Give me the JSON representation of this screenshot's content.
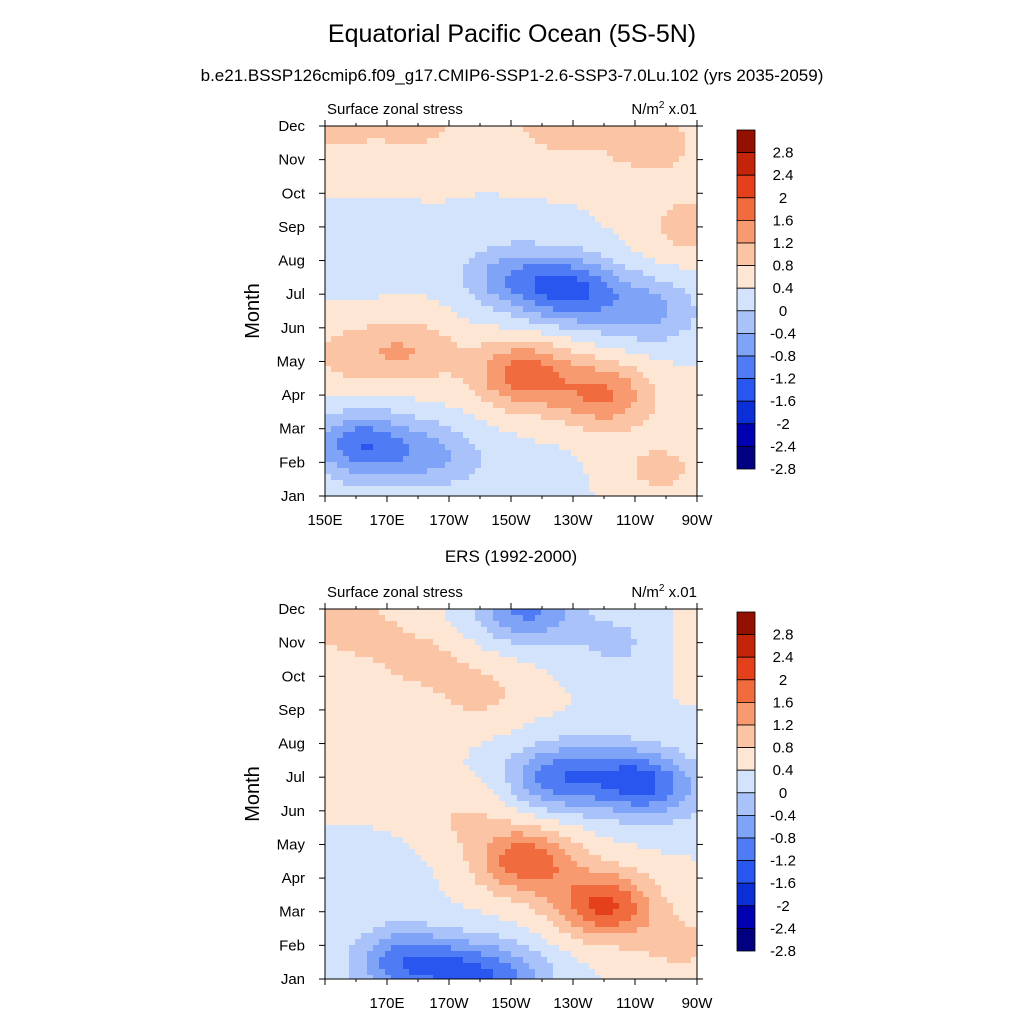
{
  "main_title": "Equatorial Pacific Ocean (5S-5N)",
  "sub_title": "b.e21.BSSP126cmip6.f09_g17.CMIP6-SSP1-2.6-SSP3-7.0Lu.102 (yrs 2035-2059)",
  "palette": [
    "#000080",
    "#0000b0",
    "#0a2fd6",
    "#2a56f0",
    "#4f7cf5",
    "#7ea3f7",
    "#a9c3fa",
    "#d3e3fb",
    "#fde6d4",
    "#fbc4a4",
    "#f79a70",
    "#f06b3e",
    "#e3401b",
    "#c42409",
    "#931000"
  ],
  "chart_data": [
    {
      "type": "heatmap",
      "title": "",
      "subtitle_left": "Surface zonal stress",
      "units_base": "N/m",
      "units_sup": "2",
      "units_suffix": " x.01",
      "ylabel": "Month",
      "xlabel": "",
      "x_ticks": [
        "150E",
        "170E",
        "170W",
        "150W",
        "130W",
        "110W",
        "90W"
      ],
      "y_ticks": [
        "Jan",
        "Feb",
        "Mar",
        "Apr",
        "May",
        "Jun",
        "Jul",
        "Aug",
        "Sep",
        "Oct",
        "Nov",
        "Dec"
      ],
      "contour_levels": [
        "2.8",
        "2.4",
        "2",
        "1.6",
        "1.2",
        "0.8",
        "0.4",
        "0",
        "-0.4",
        "-0.8",
        "-1.2",
        "-1.6",
        "-2",
        "-2.4",
        "-2.8"
      ],
      "x_lon_range": [
        150,
        270
      ],
      "y_month_range": [
        1,
        12
      ],
      "features": [
        {
          "lon": 153,
          "month": 12,
          "value": 0.5
        },
        {
          "lon": 180,
          "month": 12.2,
          "value": 0.6
        },
        {
          "lon": 225,
          "month": 12,
          "value": 0.6
        },
        {
          "lon": 255,
          "month": 11.5,
          "value": 0.7
        },
        {
          "lon": 268,
          "month": 9,
          "value": 0.6
        },
        {
          "lon": 160,
          "month": 8,
          "value": -0.2
        },
        {
          "lon": 230,
          "month": 7.1,
          "value": -1.6
        },
        {
          "lon": 210,
          "month": 7.5,
          "value": -1.0
        },
        {
          "lon": 255,
          "month": 6.5,
          "value": -0.9
        },
        {
          "lon": 214,
          "month": 4.6,
          "value": 1.4
        },
        {
          "lon": 240,
          "month": 4,
          "value": 1.2
        },
        {
          "lon": 178,
          "month": 5.3,
          "value": 0.7
        },
        {
          "lon": 158,
          "month": 5.2,
          "value": 0.5
        },
        {
          "lon": 162,
          "month": 2.5,
          "value": -1.5
        },
        {
          "lon": 185,
          "month": 2.2,
          "value": -0.8
        },
        {
          "lon": 215,
          "month": 1.3,
          "value": -0.3
        },
        {
          "lon": 258,
          "month": 1.8,
          "value": 0.5
        }
      ]
    },
    {
      "type": "heatmap",
      "title": "ERS (1992-2000)",
      "subtitle_left": "Surface zonal stress",
      "units_base": "N/m",
      "units_sup": "2",
      "units_suffix": " x.01",
      "ylabel": "Month",
      "xlabel": "",
      "x_ticks": [
        "",
        "170E",
        "170W",
        "150W",
        "130W",
        "110W",
        "90W"
      ],
      "y_ticks": [
        "Jan",
        "Feb",
        "Mar",
        "Apr",
        "May",
        "Jun",
        "Jul",
        "Aug",
        "Sep",
        "Oct",
        "Nov",
        "Dec"
      ],
      "contour_levels": [
        "2.8",
        "2.4",
        "2",
        "1.6",
        "1.2",
        "0.8",
        "0.4",
        "0",
        "-0.4",
        "-0.8",
        "-1.2",
        "-1.6",
        "-2",
        "-2.4",
        "-2.8"
      ],
      "x_lon_range": [
        150,
        270
      ],
      "y_month_range": [
        1,
        12
      ],
      "features": [
        {
          "lon": 215,
          "month": 12,
          "value": -1.3
        },
        {
          "lon": 245,
          "month": 11,
          "value": -0.5
        },
        {
          "lon": 180,
          "month": 10.5,
          "value": 0.5
        },
        {
          "lon": 200,
          "month": 9.5,
          "value": 0.5
        },
        {
          "lon": 158,
          "month": 11.5,
          "value": 0.6
        },
        {
          "lon": 268,
          "month": 11,
          "value": 0.2
        },
        {
          "lon": 225,
          "month": 7,
          "value": -1.4
        },
        {
          "lon": 248,
          "month": 7,
          "value": -1.2
        },
        {
          "lon": 258,
          "month": 6.6,
          "value": -0.8
        },
        {
          "lon": 165,
          "month": 7,
          "value": 0.2
        },
        {
          "lon": 215,
          "month": 4.5,
          "value": 1.5
        },
        {
          "lon": 240,
          "month": 3.2,
          "value": 1.7
        },
        {
          "lon": 195,
          "month": 5.8,
          "value": 0.4
        },
        {
          "lon": 165,
          "month": 4,
          "value": -0.3
        },
        {
          "lon": 175,
          "month": 1.5,
          "value": -1.4
        },
        {
          "lon": 195,
          "month": 1.2,
          "value": -1.2
        },
        {
          "lon": 210,
          "month": 1,
          "value": -0.8
        },
        {
          "lon": 265,
          "month": 2,
          "value": 0.5
        }
      ]
    }
  ]
}
